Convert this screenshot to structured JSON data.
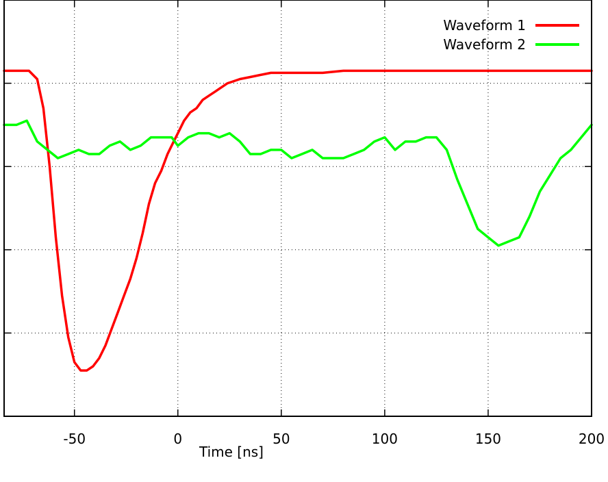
{
  "chart_data": {
    "type": "line",
    "title": "",
    "xlabel": "Time [ns]",
    "ylabel": "",
    "xlim": [
      -84,
      200
    ],
    "x_ticks": [
      -50,
      0,
      50,
      100,
      150,
      200
    ],
    "x_tick_labels": [
      "-50",
      "0",
      "50",
      "100",
      "150",
      "200"
    ],
    "ylim": [
      0.0,
      1.0
    ],
    "y_ticks": [
      0.2,
      0.4,
      0.6,
      0.8
    ],
    "grid": true,
    "legend_position": "top-right",
    "series": [
      {
        "name": "Waveform 1",
        "color": "#ff0000",
        "x": [
          -84,
          -72,
          -68,
          -65,
          -62,
          -59,
          -56,
          -53,
          -50,
          -47,
          -44,
          -41,
          -38,
          -35,
          -32,
          -29,
          -26,
          -23,
          -20,
          -17,
          -14,
          -11,
          -8,
          -5,
          -2,
          0,
          3,
          6,
          9,
          12,
          15,
          18,
          21,
          24,
          27,
          30,
          35,
          40,
          45,
          50,
          55,
          60,
          65,
          70,
          80,
          90,
          100,
          120,
          140,
          160,
          180,
          200
        ],
        "y": [
          0.83,
          0.83,
          0.81,
          0.74,
          0.6,
          0.43,
          0.29,
          0.19,
          0.13,
          0.11,
          0.11,
          0.12,
          0.14,
          0.17,
          0.21,
          0.25,
          0.29,
          0.33,
          0.38,
          0.44,
          0.51,
          0.56,
          0.59,
          0.63,
          0.66,
          0.68,
          0.71,
          0.73,
          0.74,
          0.76,
          0.77,
          0.78,
          0.79,
          0.8,
          0.805,
          0.81,
          0.815,
          0.82,
          0.825,
          0.825,
          0.825,
          0.825,
          0.825,
          0.825,
          0.83,
          0.83,
          0.83,
          0.83,
          0.83,
          0.83,
          0.83,
          0.83
        ]
      },
      {
        "name": "Waveform 2",
        "color": "#00ff00",
        "x": [
          -84,
          -78,
          -73,
          -68,
          -63,
          -58,
          -53,
          -48,
          -43,
          -38,
          -33,
          -28,
          -23,
          -18,
          -13,
          -8,
          -3,
          0,
          5,
          10,
          15,
          20,
          25,
          30,
          35,
          40,
          45,
          50,
          55,
          60,
          65,
          70,
          75,
          80,
          85,
          90,
          95,
          100,
          105,
          110,
          115,
          120,
          125,
          130,
          135,
          140,
          145,
          150,
          155,
          160,
          165,
          170,
          175,
          180,
          185,
          190,
          195,
          200
        ],
        "y": [
          0.7,
          0.7,
          0.71,
          0.66,
          0.64,
          0.62,
          0.63,
          0.64,
          0.63,
          0.63,
          0.65,
          0.66,
          0.64,
          0.65,
          0.67,
          0.67,
          0.67,
          0.65,
          0.67,
          0.68,
          0.68,
          0.67,
          0.68,
          0.66,
          0.63,
          0.63,
          0.64,
          0.64,
          0.62,
          0.63,
          0.64,
          0.62,
          0.62,
          0.62,
          0.63,
          0.64,
          0.66,
          0.67,
          0.64,
          0.66,
          0.66,
          0.67,
          0.67,
          0.64,
          0.57,
          0.51,
          0.45,
          0.43,
          0.41,
          0.42,
          0.43,
          0.48,
          0.54,
          0.58,
          0.62,
          0.64,
          0.67,
          0.7
        ]
      }
    ]
  }
}
